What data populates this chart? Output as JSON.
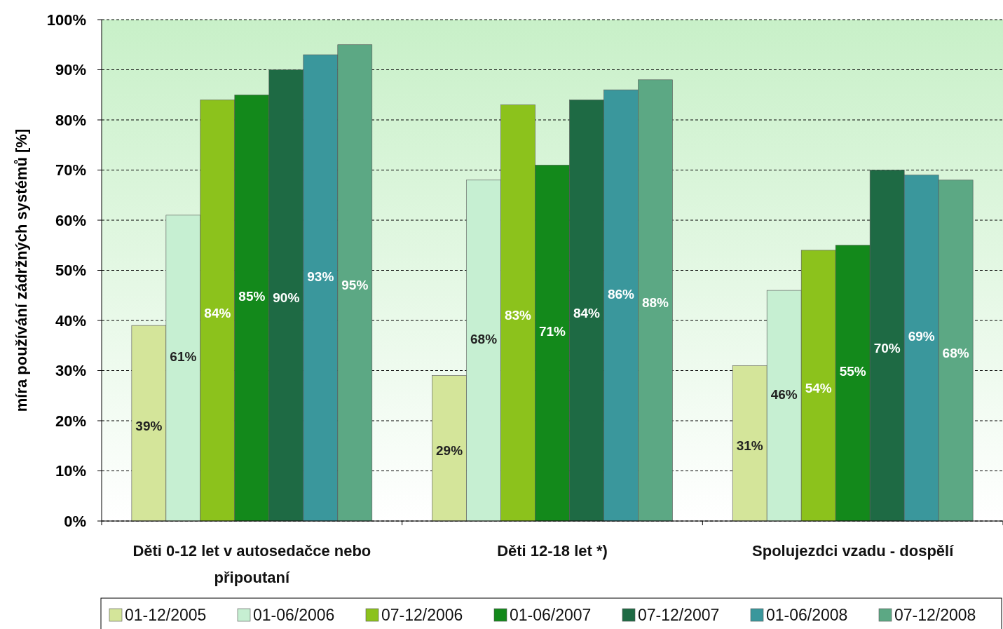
{
  "chart_data": {
    "type": "bar",
    "ylabel": "míra používání zádržných systémů [%]",
    "categories": [
      "Děti 0-12 let v autosedačce nebo připoutaní",
      "Děti 12-18 let *)",
      "Spolujezdci vzadu - dospělí"
    ],
    "series": [
      {
        "name": "01-12/2005",
        "color": "#d4e59a",
        "values": [
          39,
          29,
          31
        ],
        "value_labels": [
          "39%",
          "29%",
          "31%"
        ]
      },
      {
        "name": "01-06/2006",
        "color": "#c6efd2",
        "values": [
          61,
          68,
          46
        ],
        "value_labels": [
          "61%",
          "68%",
          "46%"
        ]
      },
      {
        "name": "07-12/2006",
        "color": "#8cc21c",
        "values": [
          84,
          83,
          54
        ],
        "value_labels": [
          "84%",
          "83%",
          "54%"
        ]
      },
      {
        "name": "01-06/2007",
        "color": "#13891b",
        "values": [
          85,
          71,
          55
        ],
        "value_labels": [
          "85%",
          "71%",
          "55%"
        ]
      },
      {
        "name": "07-12/2007",
        "color": "#1e6a44",
        "values": [
          90,
          84,
          70
        ],
        "value_labels": [
          "90%",
          "84%",
          "70%"
        ]
      },
      {
        "name": "01-06/2008",
        "color": "#3a979c",
        "values": [
          93,
          86,
          69
        ],
        "value_labels": [
          "93%",
          "86%",
          "69%"
        ]
      },
      {
        "name": "07-12/2008",
        "color": "#5ca884",
        "values": [
          95,
          88,
          68
        ],
        "value_labels": [
          "95%",
          "88%",
          "68%"
        ]
      }
    ],
    "ylim": [
      0,
      100
    ],
    "yticks": [
      {
        "value": 0,
        "label": "0%"
      },
      {
        "value": 10,
        "label": "10%"
      },
      {
        "value": 20,
        "label": "20%"
      },
      {
        "value": 30,
        "label": "30%"
      },
      {
        "value": 40,
        "label": "40%"
      },
      {
        "value": 50,
        "label": "50%"
      },
      {
        "value": 60,
        "label": "60%"
      },
      {
        "value": 70,
        "label": "70%"
      },
      {
        "value": 80,
        "label": "80%"
      },
      {
        "value": 90,
        "label": "90%"
      },
      {
        "value": 100,
        "label": "100%"
      }
    ],
    "grid": "y",
    "legend": "bottom"
  }
}
